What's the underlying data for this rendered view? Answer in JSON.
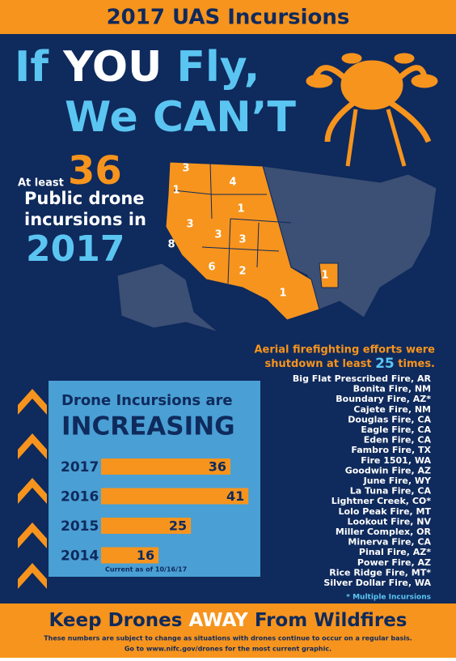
{
  "header": {
    "title": "2017 UAS Incursions"
  },
  "headline": {
    "line1": [
      "If ",
      "YOU",
      " Fly,"
    ],
    "line2": "We CAN’T"
  },
  "stat": {
    "prefix": "At least",
    "number": "36",
    "lines": [
      "Public drone",
      "incursions in"
    ],
    "year": "2017"
  },
  "map_labels": [
    "3",
    "1",
    "4",
    "1",
    "3",
    "3",
    "3",
    "8",
    "6",
    "2",
    "1",
    "1"
  ],
  "shutdown": {
    "line1": "Aerial firefighting efforts were",
    "line2": "shutdown at least",
    "count": "25",
    "end": "times."
  },
  "fires": [
    "Big Flat Prescribed Fire, AR",
    "Bonita Fire, NM",
    "Boundary Fire, AZ*",
    "Cajete Fire, NM",
    "Douglas Fire, CA",
    "Eagle Fire, CA",
    "Eden Fire, CA",
    "Fambro Fire, TX",
    "Fire 1501, WA",
    "Goodwin Fire, AZ",
    "June Fire, WY",
    "La Tuna Fire, CA",
    "Lightner Creek, CO*",
    "Lolo Peak Fire, MT",
    "Lookout Fire, NV",
    "Miller Complex, OR",
    "Minerva Fire, CA",
    "Pinal Fire, AZ*",
    "Power Fire, AZ",
    "Rice Ridge Fire, MT*",
    "Silver Dollar Fire, WA"
  ],
  "fires_note": "* Multiple Incursions",
  "chart_data": {
    "type": "bar",
    "orientation": "horizontal",
    "title": "Drone Incursions are",
    "subtitle": "INCREASING",
    "categories": [
      "2017",
      "2016",
      "2015",
      "2014"
    ],
    "values": [
      36,
      41,
      25,
      16
    ],
    "color": "#f7941d",
    "xlim": [
      0,
      45
    ],
    "note": "Current as of 10/16/17"
  },
  "footer": {
    "line": [
      "Keep Drones ",
      "AWAY",
      " From Wildfires"
    ],
    "notes": [
      "These numbers are subject to change as situations with drones continue to occur on a regular basis.",
      "Go to www.nifc.gov/drones for the most current graphic."
    ]
  }
}
